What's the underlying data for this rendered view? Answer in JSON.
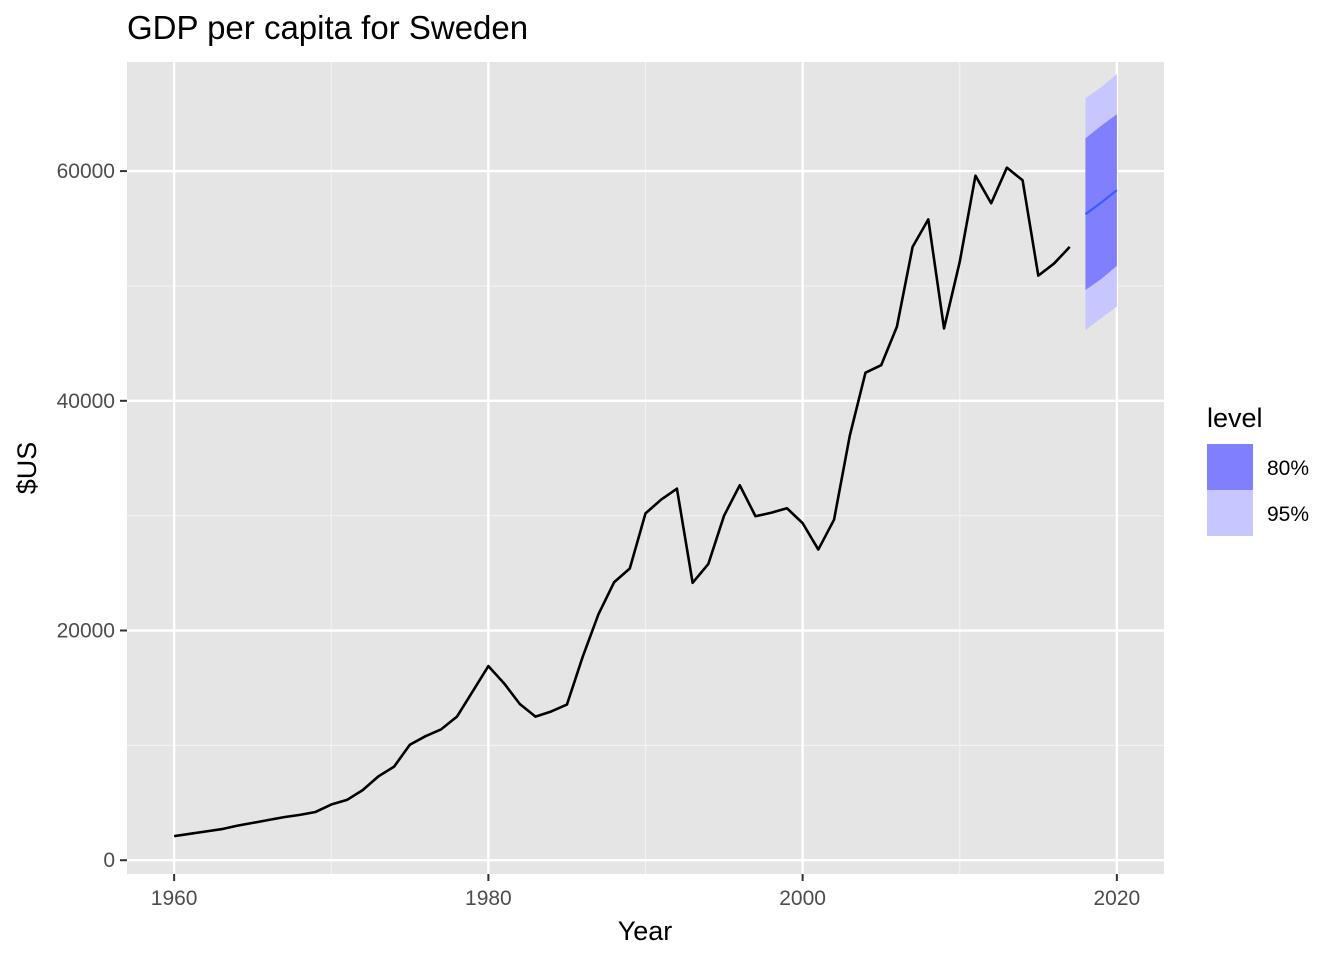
{
  "chart_data": {
    "type": "line",
    "title": "GDP per capita for Sweden",
    "xlabel": "Year",
    "ylabel": "$US",
    "xlim": [
      1957,
      2023
    ],
    "ylim": [
      -1200,
      69500
    ],
    "x_ticks": [
      1960,
      1980,
      2000,
      2020
    ],
    "y_ticks": [
      0,
      20000,
      40000,
      60000
    ],
    "x_tick_labels": [
      "1960",
      "1980",
      "2000",
      "2020"
    ],
    "y_tick_labels": [
      "0",
      "20000",
      "40000",
      "60000"
    ],
    "grid": true,
    "legend": {
      "title": "level",
      "placement": "right",
      "items": [
        {
          "label": "80%",
          "color": "#8080ff"
        },
        {
          "label": "95%",
          "color": "#c8c6ff"
        }
      ]
    },
    "series": [
      {
        "color": "#000000",
        "x": [
          1960,
          1961,
          1962,
          1963,
          1964,
          1965,
          1966,
          1967,
          1968,
          1969,
          1970,
          1971,
          1972,
          1973,
          1974,
          1975,
          1976,
          1977,
          1978,
          1979,
          1980,
          1981,
          1982,
          1983,
          1984,
          1985,
          1986,
          1987,
          1988,
          1989,
          1990,
          1991,
          1992,
          1993,
          1994,
          1995,
          1996,
          1997,
          1998,
          1999,
          2000,
          2001,
          2002,
          2003,
          2004,
          2005,
          2006,
          2007,
          2008,
          2009,
          2010,
          2011,
          2012,
          2013,
          2014,
          2015,
          2016,
          2017
        ],
        "values": [
          2100,
          2300,
          2500,
          2700,
          3000,
          3250,
          3500,
          3750,
          3950,
          4200,
          4850,
          5250,
          6100,
          7300,
          8150,
          10050,
          10800,
          11400,
          12500,
          14700,
          16900,
          15400,
          13600,
          12500,
          12950,
          13550,
          17700,
          21400,
          24200,
          25400,
          30200,
          31400,
          32350,
          24150,
          25800,
          30000,
          32650,
          29950,
          30250,
          30650,
          29350,
          27050,
          29650,
          36950,
          42450,
          43100,
          46450,
          53400,
          55800,
          46300,
          52100,
          59600,
          57200,
          60300,
          59200,
          50900,
          51950,
          53400
        ]
      }
    ],
    "forecast": {
      "mean_color": "#3d5bff",
      "x": [
        2018,
        2019,
        2020
      ],
      "mean": [
        56250,
        57250,
        58350
      ],
      "lo80": [
        49650,
        50600,
        51750
      ],
      "hi80": [
        62850,
        63950,
        64950
      ],
      "lo95": [
        46150,
        47200,
        48200
      ],
      "hi95": [
        66350,
        67300,
        68450
      ]
    },
    "colors": {
      "panel": "#e5e5e5",
      "grid_major": "#ffffff",
      "grid_minor": "#f2f2f2",
      "band80": "#8080ff",
      "band95": "#c8c6ff"
    }
  }
}
